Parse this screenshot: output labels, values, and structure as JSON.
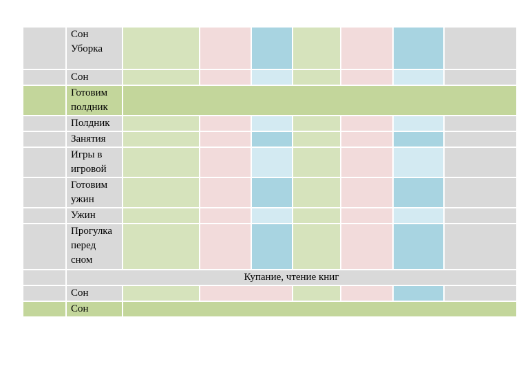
{
  "rows": [
    {
      "label": "Сон Уборка",
      "kind": "normal",
      "blue": "dark"
    },
    {
      "label": "Сон",
      "kind": "normal",
      "blue": "light"
    },
    {
      "label": "Готовим полдник",
      "kind": "band-green"
    },
    {
      "label": "Полдник",
      "kind": "normal",
      "blue": "light"
    },
    {
      "label": "Занятия",
      "kind": "normal",
      "blue": "dark"
    },
    {
      "label": "Игры в игровой",
      "kind": "normal",
      "blue": "light"
    },
    {
      "label": "Готовим ужин",
      "kind": "normal",
      "blue": "dark"
    },
    {
      "label": "Ужин",
      "kind": "normal",
      "blue": "light"
    },
    {
      "label": "Прогулка перед сном",
      "kind": "normal",
      "blue": "dark"
    },
    {
      "label": "",
      "merged_text": "Купание, чтение книг",
      "kind": "band-gray"
    },
    {
      "label": "Сон",
      "kind": "last-sleep"
    },
    {
      "label": "Сон",
      "kind": "band-green"
    }
  ],
  "colors": {
    "gray": "#d9d9d9",
    "green": "#d6e3bc",
    "pink": "#f2dbdb",
    "blue_dark": "#a8d4e1",
    "blue_light": "#d3eaf2",
    "band_green": "#c3d69b"
  }
}
